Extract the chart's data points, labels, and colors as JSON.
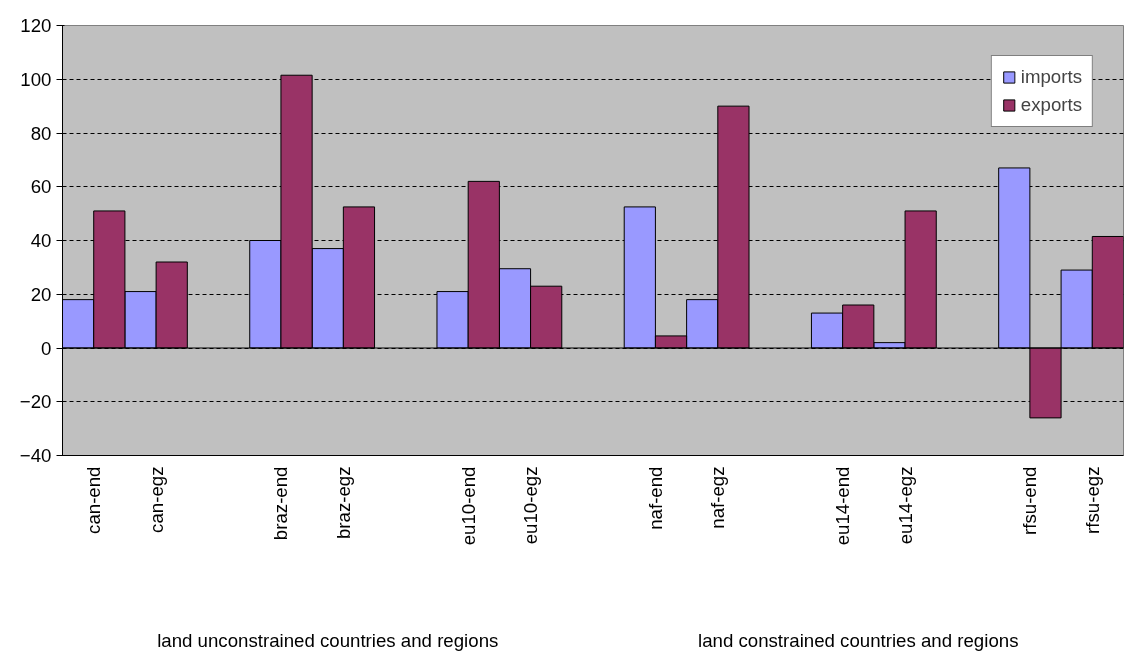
{
  "chart_data": {
    "type": "bar",
    "categories": [
      "can-end",
      "can-egz",
      null,
      "braz-end",
      "braz-egz",
      null,
      "eu10-end",
      "eu10-egz",
      null,
      "naf-end",
      "naf-egz",
      null,
      "eu14-end",
      "eu14-egz",
      null,
      "rfsu-end",
      "rfsu-egz"
    ],
    "series": [
      {
        "name": "imports",
        "color": "#9999ff",
        "values": [
          18,
          21,
          null,
          40,
          37,
          null,
          21,
          29.5,
          null,
          52.5,
          18,
          null,
          13,
          2,
          null,
          67,
          29
        ]
      },
      {
        "name": "exports",
        "color": "#993366",
        "values": [
          51,
          32,
          null,
          101.5,
          52.5,
          null,
          62,
          23,
          null,
          4.5,
          90,
          null,
          16,
          51,
          null,
          -26,
          41.5
        ]
      }
    ],
    "ylim": [
      -40,
      120
    ],
    "yticks": [
      -40,
      -20,
      0,
      20,
      40,
      60,
      80,
      100,
      120
    ],
    "grid": "y",
    "legend": "top right",
    "annotations": [
      "land unconstrained countries and regions",
      "land constrained countries and regions"
    ]
  }
}
